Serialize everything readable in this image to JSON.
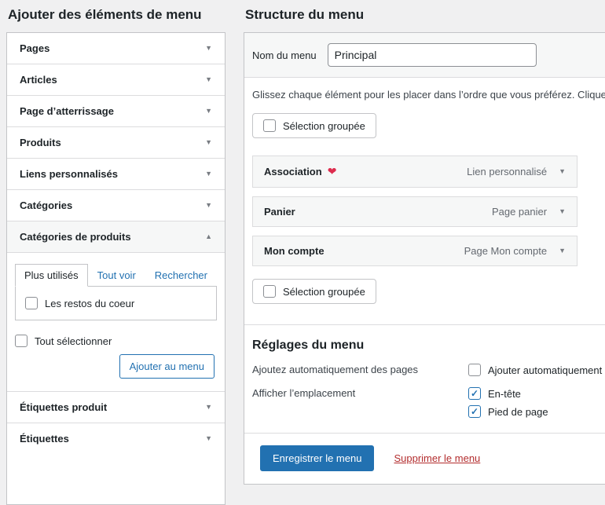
{
  "colors": {
    "page_bg": "#f0f0f1",
    "panel_bg": "#ffffff",
    "panel_border": "#c3c4c7",
    "separator": "#dcdcde",
    "accent_blue": "#2271b1",
    "danger_red": "#b32d2e",
    "heart_red": "#dd2c4e",
    "muted_text": "#646970",
    "card_bg": "#f6f7f7"
  },
  "left_panel": {
    "title": "Ajouter des éléments de menu",
    "accordions_before": [
      "Pages",
      "Articles",
      "Page d’atterrissage",
      "Produits",
      "Liens personnalisés",
      "Catégories"
    ],
    "open_accordion": {
      "label": "Catégories de produits",
      "tabs": [
        {
          "label": "Plus utilisés"
        },
        {
          "label": "Tout voir"
        },
        {
          "label": "Rechercher"
        }
      ],
      "items": [
        {
          "label": "Les restos du coeur",
          "checked": false
        }
      ],
      "select_all_label": "Tout sélectionner",
      "add_button_label": "Ajouter au menu"
    },
    "accordions_after": [
      "Étiquettes produit",
      "Étiquettes"
    ]
  },
  "right_panel": {
    "title": "Structure du menu",
    "name_label": "Nom du menu",
    "name_value": "Principal",
    "drag_hint": "Glissez chaque élément pour les placer dans l’ordre que vous préférez. Cliquez",
    "bulk_select_label": "Sélection groupée",
    "menu_items": [
      {
        "title": "Association",
        "heart": "❤",
        "type": "Lien personnalisé"
      },
      {
        "title": "Panier",
        "heart": "",
        "type": "Page panier"
      },
      {
        "title": "Mon compte",
        "heart": "",
        "type": "Page Mon compte"
      }
    ],
    "settings": {
      "title": "Réglages du menu",
      "auto_add_label": "Ajoutez automatiquement des pages",
      "auto_add_checkbox_label": "Ajouter automatiquement",
      "location_label": "Afficher l’emplacement",
      "locations": [
        {
          "label": "En-tête",
          "checked": true
        },
        {
          "label": "Pied de page",
          "checked": true
        }
      ]
    },
    "footer": {
      "save_label": "Enregistrer le menu",
      "delete_label": "Supprimer le menu"
    }
  }
}
